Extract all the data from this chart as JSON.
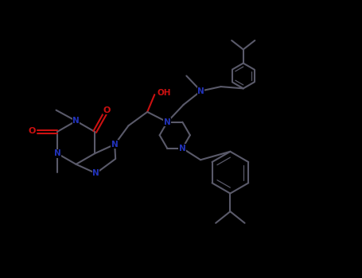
{
  "bg": "#000000",
  "bc": "#5a5a6a",
  "nc": "#2233bb",
  "oc": "#cc1111",
  "lw": 1.5,
  "lw_thin": 0.9,
  "fs": 7.5,
  "xlim": [
    0,
    10
  ],
  "ylim": [
    0,
    7.7
  ]
}
